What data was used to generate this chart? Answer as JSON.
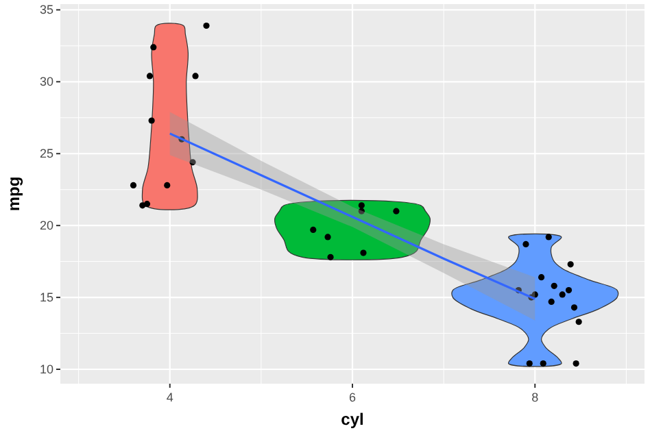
{
  "chart_data": {
    "type": "scatter",
    "xlabel": "cyl",
    "ylabel": "mpg",
    "xlim": [
      2.8,
      9.2
    ],
    "ylim": [
      9,
      35.4
    ],
    "xticks": [
      4,
      6,
      8
    ],
    "yticks": [
      10,
      15,
      20,
      25,
      30,
      35
    ],
    "grid": true,
    "series": [
      {
        "type": "area",
        "color": "#f8766d",
        "x": [
          3.73,
          3.7,
          3.76,
          3.79,
          3.81,
          3.82,
          3.8,
          3.83,
          3.85,
          4.15,
          4.17,
          4.2,
          4.18,
          4.19,
          4.21,
          4.24,
          4.3,
          4.27
        ],
        "values": [
          21.4,
          22.5,
          24,
          26,
          28,
          30,
          32,
          33.3,
          33.9,
          33.9,
          33.3,
          32,
          30,
          28,
          26,
          24,
          22.5,
          21.4
        ]
      },
      {
        "type": "area",
        "color": "#00ba38",
        "x": [
          5.45,
          5.3,
          5.25,
          5.17,
          5.15,
          5.2,
          5.25,
          6.75,
          6.8,
          6.85,
          6.83,
          6.75,
          6.7,
          6.55
        ],
        "values": [
          17.8,
          18.2,
          19,
          19.8,
          20.5,
          21,
          21.4,
          21.4,
          21,
          20.5,
          19.8,
          19,
          18.2,
          17.8
        ]
      },
      {
        "type": "area",
        "color": "#619cff",
        "x": [
          7.71,
          7.75,
          7.88,
          7.93,
          7.85,
          7.6,
          7.3,
          7.1,
          7.1,
          7.4,
          7.7,
          7.8,
          7.82,
          7.71,
          8.29,
          8.18,
          8.2,
          8.3,
          8.6,
          8.9,
          8.9,
          8.7,
          8.4,
          8.15,
          8.07,
          8.12,
          8.25,
          8.29
        ],
        "values": [
          10.4,
          10.8,
          11.5,
          12.1,
          12.8,
          13.5,
          14.2,
          15,
          15.5,
          16.2,
          17,
          17.6,
          18.5,
          19.2,
          19.2,
          18.5,
          17.6,
          17,
          16.2,
          15.5,
          15,
          14.2,
          13.5,
          12.8,
          12.1,
          11.5,
          10.8,
          10.4
        ]
      },
      {
        "color": "#000000",
        "marker": "circle",
        "x": [
          4.4,
          3.82,
          3.78,
          4.28,
          3.8,
          4.13,
          4.25,
          3.6,
          3.97,
          3.75,
          3.7,
          6.1,
          6.1,
          6.48,
          5.57,
          5.73,
          5.76,
          6.12,
          7.9,
          8.15,
          8.39,
          8.07,
          8.21,
          7.82,
          8.0,
          8.3,
          7.96,
          8.18,
          8.43,
          8.48,
          8.45,
          7.94,
          8.09,
          8.37
        ],
        "values": [
          33.9,
          32.4,
          30.4,
          30.4,
          27.3,
          26.0,
          24.4,
          22.8,
          22.8,
          21.5,
          21.4,
          21.4,
          21.0,
          21.0,
          19.7,
          19.2,
          17.8,
          18.1,
          18.7,
          19.2,
          17.3,
          16.4,
          15.8,
          15.5,
          15.2,
          15.2,
          15.0,
          14.7,
          14.3,
          13.3,
          10.4,
          10.4,
          10.4,
          15.5
        ]
      },
      {
        "type": "line",
        "color": "#3366ff",
        "x": [
          4,
          5,
          6,
          7,
          8
        ],
        "values": [
          26.4,
          23.5,
          20.6,
          17.7,
          14.9
        ],
        "lower": [
          24.9,
          22.5,
          19.9,
          16.7,
          13.4
        ],
        "upper": [
          27.9,
          24.5,
          21.3,
          18.7,
          16.4
        ]
      }
    ]
  }
}
